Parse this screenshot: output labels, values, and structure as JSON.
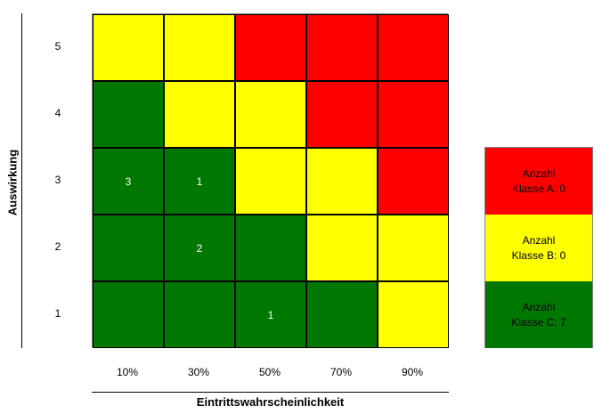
{
  "chart_data": {
    "type": "heatmap",
    "xlabel": "Eintrittswahrscheinlichkeit",
    "ylabel": "Auswirkung",
    "x_categories": [
      "10%",
      "30%",
      "50%",
      "70%",
      "90%"
    ],
    "y_categories": [
      "5",
      "4",
      "3",
      "2",
      "1"
    ],
    "colors": {
      "A": "#ff0000",
      "B": "#ffff00",
      "C": "#007800"
    },
    "class_grid": [
      [
        "B",
        "B",
        "A",
        "A",
        "A"
      ],
      [
        "C",
        "B",
        "B",
        "A",
        "A"
      ],
      [
        "C",
        "C",
        "B",
        "B",
        "A"
      ],
      [
        "C",
        "C",
        "C",
        "B",
        "B"
      ],
      [
        "C",
        "C",
        "C",
        "C",
        "B"
      ]
    ],
    "counts": [
      [
        "",
        "",
        "",
        "",
        ""
      ],
      [
        "",
        "",
        "",
        "",
        ""
      ],
      [
        "3",
        "1",
        "",
        "",
        ""
      ],
      [
        "",
        "2",
        "",
        "",
        ""
      ],
      [
        "",
        "",
        "1",
        "",
        ""
      ]
    ],
    "legend": [
      {
        "class": "A",
        "line1": "Anzahl",
        "line2": "Klasse A: 0"
      },
      {
        "class": "B",
        "line1": "Anzahl",
        "line2": "Klasse B: 0"
      },
      {
        "class": "C",
        "line1": "Anzahl",
        "line2": "Klasse C: 7"
      }
    ]
  }
}
